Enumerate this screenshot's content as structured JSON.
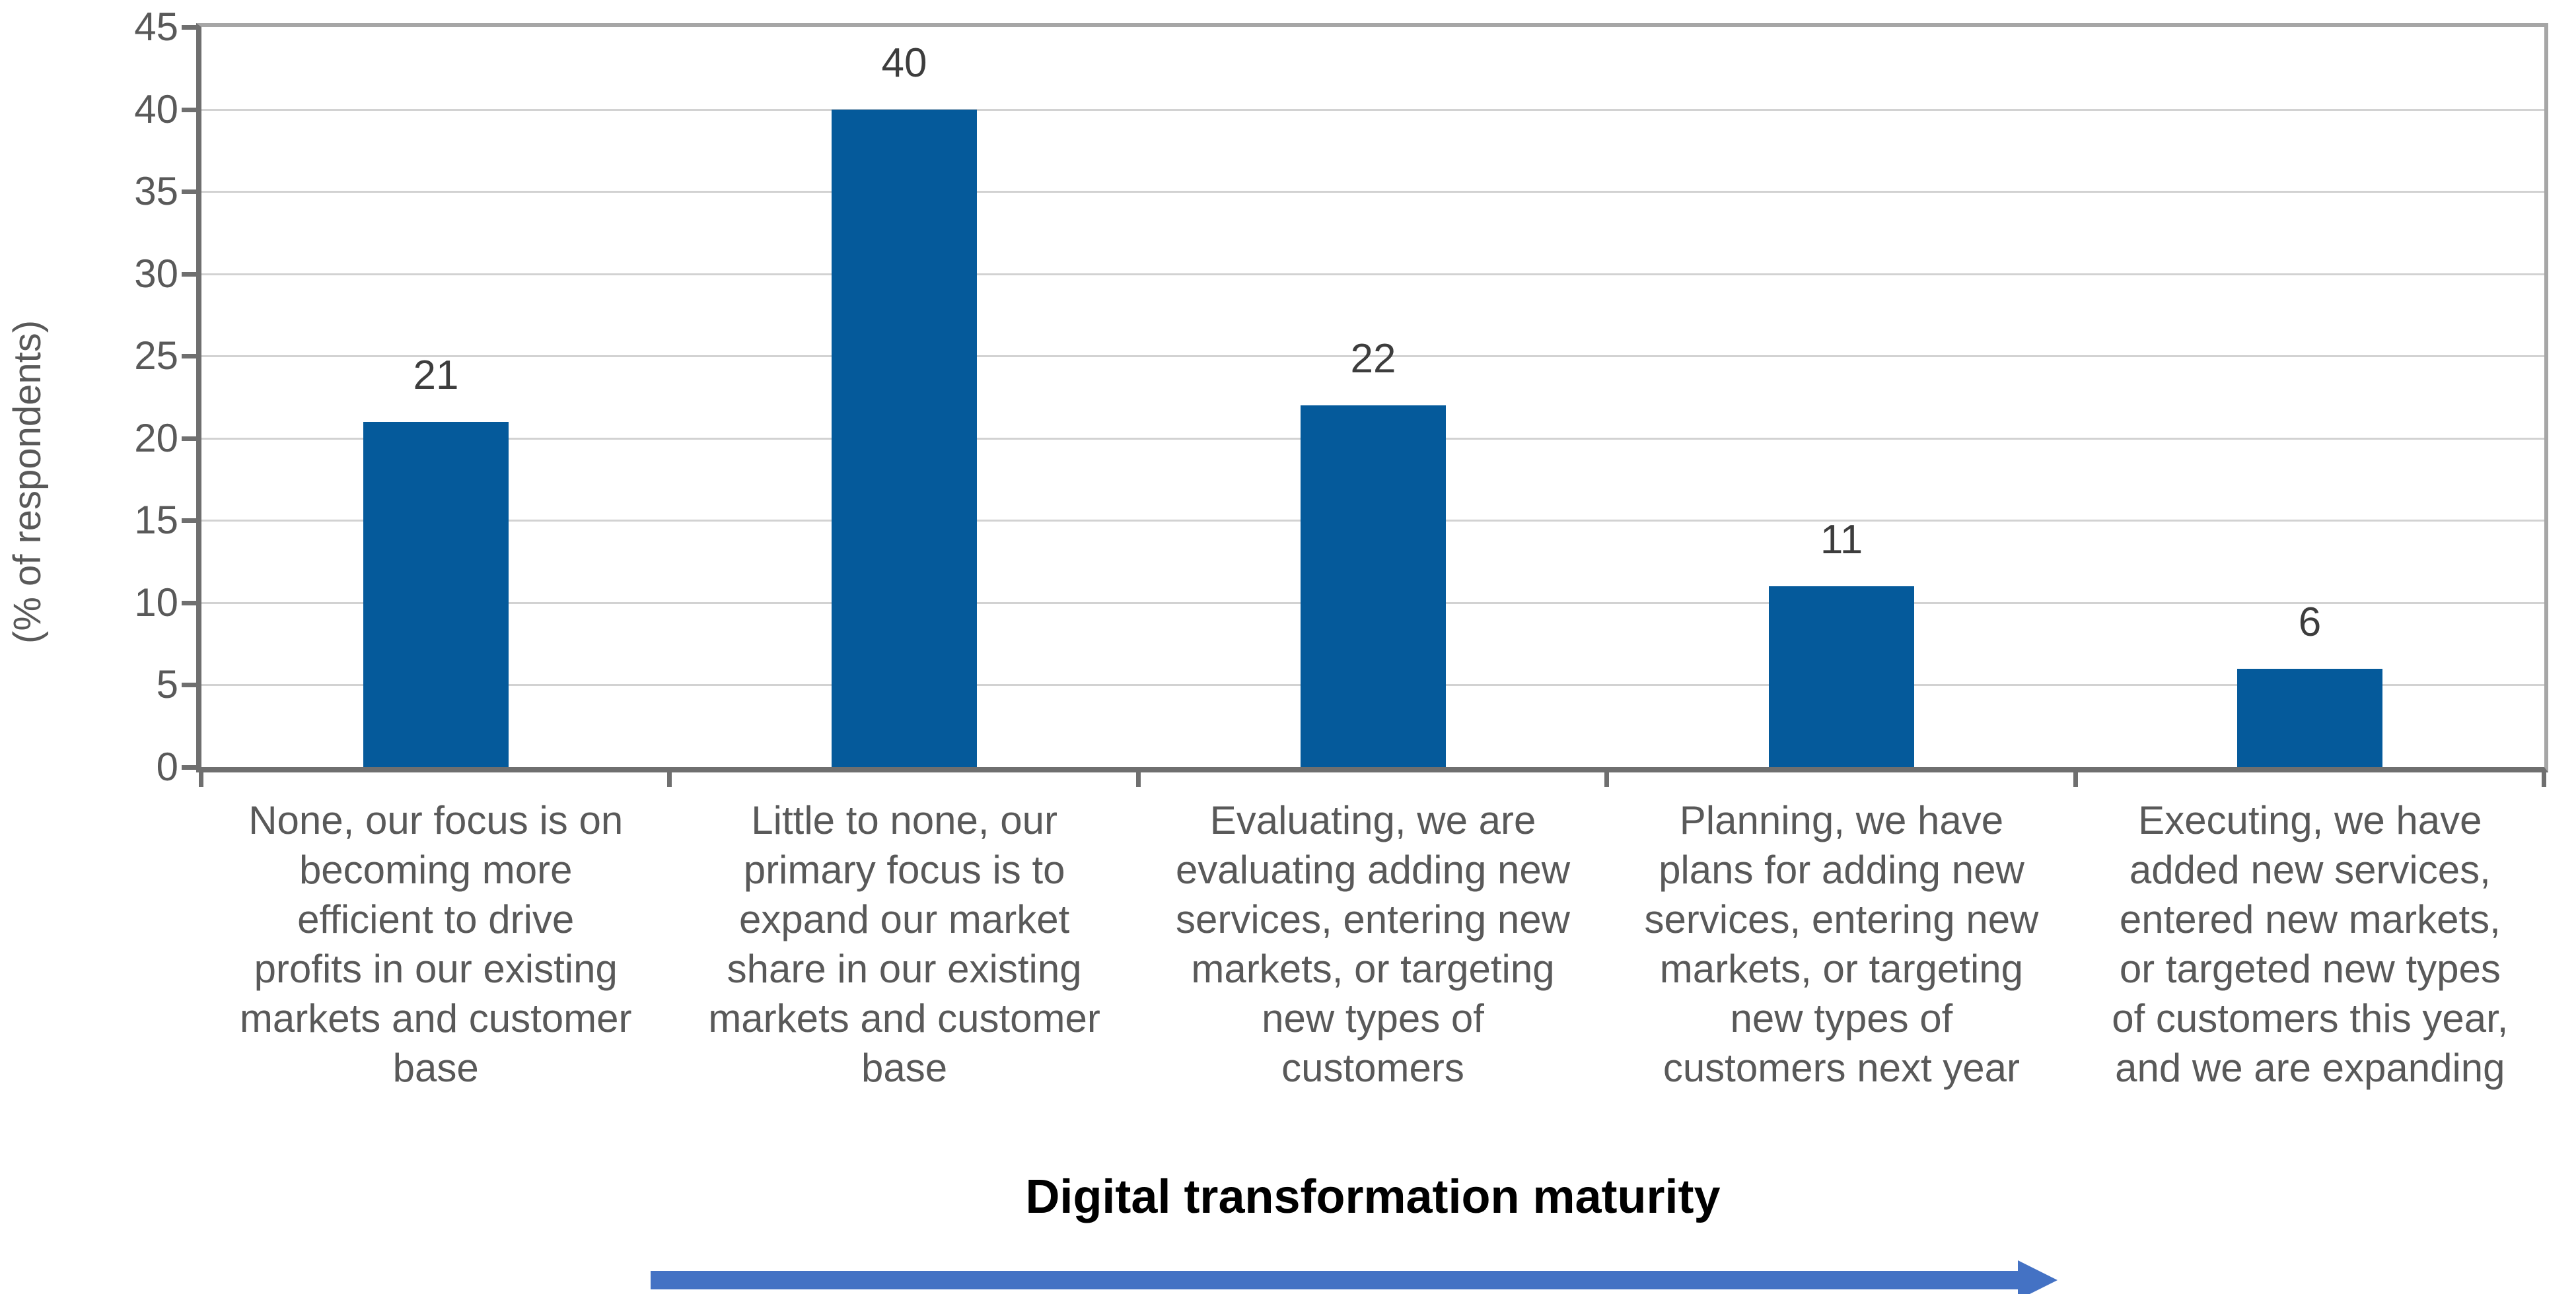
{
  "chart_data": {
    "type": "bar",
    "title": "",
    "ylabel": "(% of respondents)",
    "xlabel": "",
    "ylim": [
      0,
      45
    ],
    "ytick_step": 5,
    "yticks": [
      0,
      5,
      10,
      15,
      20,
      25,
      30,
      35,
      40,
      45
    ],
    "grid": "horizontal",
    "legend": "none",
    "bar_color": "#055A9B",
    "categories": [
      "None, our focus is on\nbecoming more\nefficient to drive\nprofits in our existing\nmarkets and customer\nbase",
      "Little to none, our\nprimary focus is to\nexpand our market\nshare in our existing\nmarkets and customer\nbase",
      "Evaluating, we are\nevaluating adding new\nservices, entering new\nmarkets, or targeting\nnew types of\ncustomers",
      "Planning, we have\nplans for adding new\nservices, entering new\nmarkets, or targeting\nnew types of\ncustomers next year",
      "Executing, we have\nadded new services,\nentered new markets,\nor targeted new types\nof customers this year,\nand we are expanding"
    ],
    "values": [
      21,
      40,
      22,
      11,
      6
    ]
  },
  "footer": {
    "caption": "Digital transformation maturity",
    "arrow_color": "#4472C4",
    "arrow_direction": "right"
  },
  "colors": {
    "bar": "#055A9B",
    "arrow": "#4472C4",
    "axis_line": "#6F6F6F",
    "plot_frame": "#A6A6A6",
    "gridline": "#D2D2D2",
    "tick_text": "#595959",
    "value_label_text": "#3D3D3D",
    "caption_text": "#000000"
  }
}
